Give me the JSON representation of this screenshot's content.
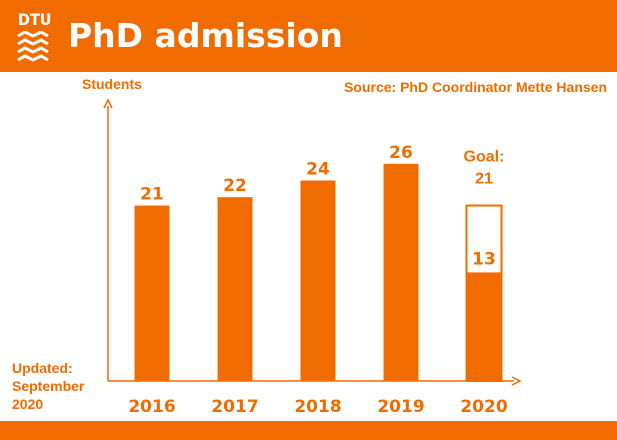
{
  "header": {
    "logo": "DTU",
    "title": "PhD admission"
  },
  "source_note": "Source: PhD Coordinator Mette Hansen",
  "updated_note": "Updated: September 2020",
  "colors": {
    "accent": "#f06c00",
    "background": "#ffffff"
  },
  "chart_data": {
    "type": "bar",
    "ylabel": "Students",
    "categories": [
      "2016",
      "2017",
      "2018",
      "2019",
      "2020"
    ],
    "values": [
      21,
      22,
      24,
      26,
      13
    ],
    "goal": {
      "category": "2020",
      "label": "Goal:",
      "value": 21
    },
    "grid": false,
    "axis_arrows": true,
    "ylim": [
      0,
      31
    ]
  }
}
